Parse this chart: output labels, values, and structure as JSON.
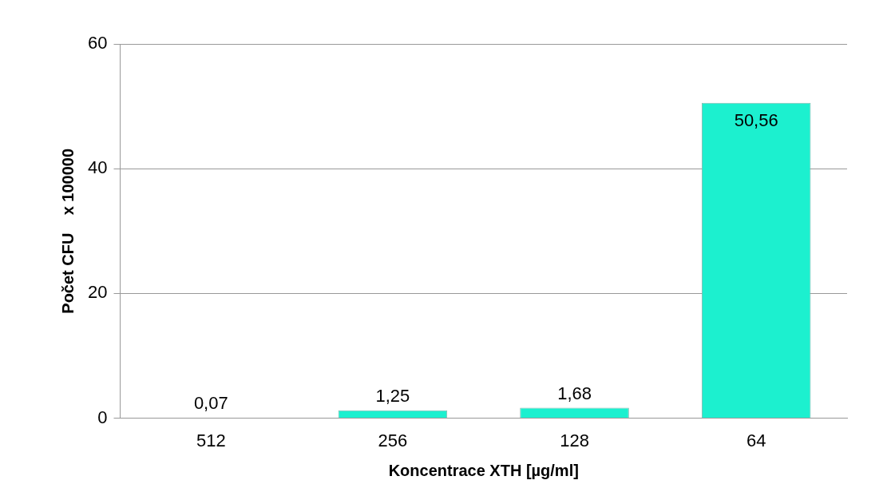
{
  "chart_data": {
    "type": "bar",
    "xlabel": "Koncentrace XTH [µg/ml]",
    "ylabel": "Počet CFU    x 100000",
    "categories": [
      "512",
      "256",
      "128",
      "64"
    ],
    "values": [
      0.07,
      1.25,
      1.68,
      50.56
    ],
    "value_labels": [
      "0,07",
      "1,25",
      "1,68",
      "50,56"
    ],
    "color": "#1cf0cf",
    "ylim": [
      0,
      60
    ],
    "yticks": [
      0,
      20,
      40,
      60
    ],
    "grid": "y",
    "legend": false
  }
}
